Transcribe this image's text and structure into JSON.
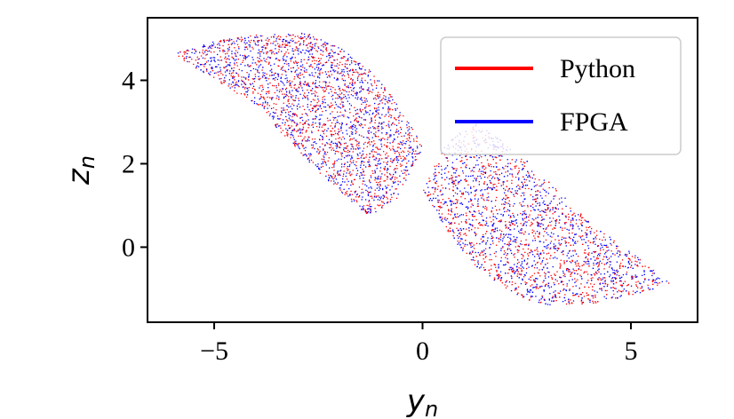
{
  "chart_data": {
    "type": "scatter",
    "title": "",
    "xlabel": {
      "base": "y",
      "sub": "n"
    },
    "ylabel": {
      "base": "z",
      "sub": "n"
    },
    "xlim": [
      -6.6,
      6.6
    ],
    "ylim": [
      -1.8,
      5.5
    ],
    "xticks": [
      -5,
      0,
      5
    ],
    "xtick_labels": [
      "−5",
      "0",
      "5"
    ],
    "yticks": [
      0,
      2,
      4
    ],
    "ytick_labels": [
      "0",
      "2",
      "4"
    ],
    "grid": false,
    "legend_position": "top-right",
    "series": [
      {
        "name": "Python",
        "color": "#ff0000"
      },
      {
        "name": "FPGA",
        "color": "#0000ff"
      }
    ],
    "attractor_outline": {
      "upper_lobe": [
        {
          "x": -6.0,
          "y": 4.65
        },
        {
          "x": -5.0,
          "y": 4.95
        },
        {
          "x": -4.0,
          "y": 5.1
        },
        {
          "x": -2.8,
          "y": 5.15
        },
        {
          "x": -2.0,
          "y": 4.8
        },
        {
          "x": -1.2,
          "y": 4.2
        },
        {
          "x": -0.5,
          "y": 3.3
        },
        {
          "x": 0.0,
          "y": 2.4
        },
        {
          "x": -0.6,
          "y": 1.2
        },
        {
          "x": -1.3,
          "y": 0.75
        },
        {
          "x": -2.5,
          "y": 1.8
        },
        {
          "x": -4.0,
          "y": 3.4
        }
      ],
      "lower_lobe": [
        {
          "x": 6.0,
          "y": -0.85
        },
        {
          "x": 5.0,
          "y": -1.15
        },
        {
          "x": 4.0,
          "y": -1.35
        },
        {
          "x": 2.8,
          "y": -1.38
        },
        {
          "x": 2.0,
          "y": -1.0
        },
        {
          "x": 1.2,
          "y": -0.4
        },
        {
          "x": 0.5,
          "y": 0.5
        },
        {
          "x": 0.0,
          "y": 1.4
        },
        {
          "x": 0.6,
          "y": 2.6
        },
        {
          "x": 1.3,
          "y": 3.0
        },
        {
          "x": 2.5,
          "y": 2.1
        },
        {
          "x": 4.0,
          "y": 0.6
        }
      ]
    }
  }
}
